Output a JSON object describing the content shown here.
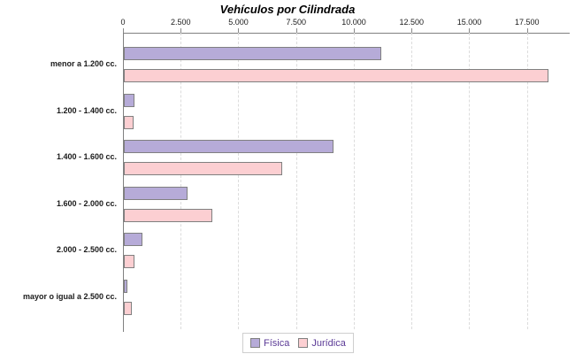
{
  "chart_data": {
    "type": "bar",
    "orientation": "horizontal",
    "title": "Vehículos por Cilindrada",
    "categories": [
      "menor a 1.200 cc.",
      "1.200 - 1.400 cc.",
      "1.400 - 1.600 cc.",
      "1.600 - 2.000 cc.",
      "2.000 - 2.500 cc.",
      "mayor o igual a 2.500 cc."
    ],
    "series": [
      {
        "name": "Física",
        "color": "#b6abd8",
        "values": [
          11150,
          450,
          9100,
          2770,
          800,
          170
        ]
      },
      {
        "name": "Jurídica",
        "color": "#fccfd2",
        "values": [
          18400,
          420,
          6870,
          3830,
          460,
          330
        ]
      }
    ],
    "xlim": [
      0,
      19350
    ],
    "x_ticks": [
      {
        "value": 0,
        "label": "0"
      },
      {
        "value": 2500,
        "label": "2.500"
      },
      {
        "value": 5000,
        "label": "5.000"
      },
      {
        "value": 7500,
        "label": "7.500"
      },
      {
        "value": 10000,
        "label": "10.000"
      },
      {
        "value": 12500,
        "label": "12.500"
      },
      {
        "value": 15000,
        "label": "15.000"
      },
      {
        "value": 17500,
        "label": "17.500"
      }
    ],
    "grid": "vertical-dashed",
    "legend_position": "bottom-center",
    "colors": {
      "axis": "#808080",
      "gridline": "#dcdcdc",
      "bar_border": "#808080",
      "legend_text": "#5b3a96",
      "title_text": "#000000",
      "label_text": "#1a1a1a",
      "background": "#ffffff"
    }
  }
}
